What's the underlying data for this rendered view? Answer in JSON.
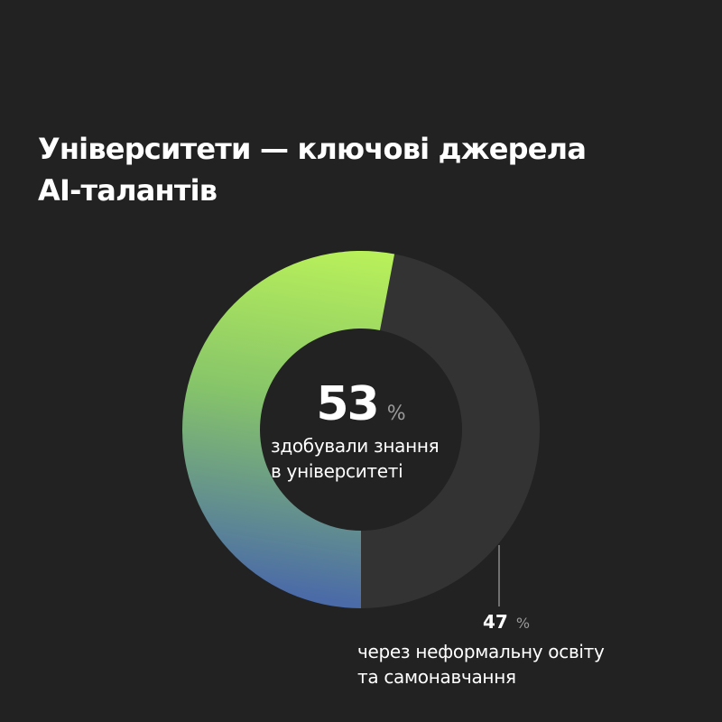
{
  "title": {
    "line1": "Університети — ключові джерела",
    "line2": "AI-талантів"
  },
  "center_label": {
    "value": "53",
    "unit": "%",
    "line1": "здобували знання",
    "line2": "в університеті"
  },
  "side_label": {
    "value": "47",
    "unit": "%",
    "line1": "через неформальну освіту",
    "line2": "та самонавчання"
  },
  "colors": {
    "background": "#222222",
    "segment_university_start": "#4a6aa8",
    "segment_university_end": "#b8f05a",
    "segment_informal": "#333333",
    "leader_line": "#8a8a8a"
  },
  "chart_data": {
    "type": "pie",
    "variant": "donut",
    "title": "Університети — ключові джерела AI-талантів",
    "series": [
      {
        "value": 53,
        "label": "здобували знання в університеті"
      },
      {
        "value": 47,
        "label": "через неформальну освіту та самонавчання"
      }
    ],
    "unit": "%"
  }
}
